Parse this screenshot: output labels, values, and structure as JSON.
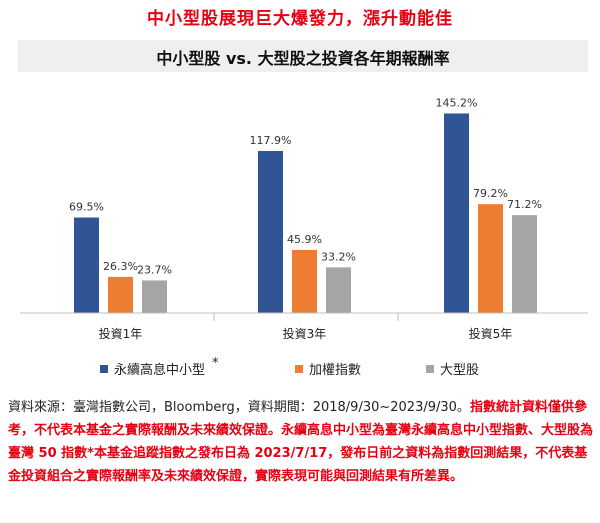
{
  "headline": "中小型股展現巨大爆發力，漲升動能佳",
  "chart_data": {
    "type": "bar",
    "title": "中小型股 vs. 大型股之投資各年期報酬率",
    "categories": [
      "投資1年",
      "投資3年",
      "投資5年"
    ],
    "series": [
      {
        "name": "永續高息中小型",
        "values": [
          69.5,
          117.9,
          145.2
        ],
        "labels": [
          "69.5%",
          "117.9%",
          "145.2%"
        ],
        "color": "#2f5597"
      },
      {
        "name": "加權指數",
        "values": [
          26.3,
          45.9,
          79.2
        ],
        "labels": [
          "26.3%",
          "45.9%",
          "79.2%"
        ],
        "color": "#ed7d31"
      },
      {
        "name": "大型股",
        "values": [
          23.7,
          33.2,
          71.2
        ],
        "labels": [
          "23.7%",
          "33.2%",
          "71.2%"
        ],
        "color": "#a5a5a5"
      }
    ],
    "legend_note": "*",
    "ylim": [
      0,
      155
    ],
    "grid": false,
    "legend_position": "bottom"
  },
  "source": {
    "plain": "資料來源：臺灣指數公司，Bloomberg，資料期間：2018/9/30~2023/9/30。",
    "red": "指數統計資料僅供參考，不代表本基金之實際報酬及未來績效保證。永續高息中小型為臺灣永續高息中小型指數、大型股為臺灣 50 指數*本基金追蹤指數之發布日為 2023/7/17，發布日前之資料為指數回測結果，不代表基金投資組合之實際報酬率及未來績效保證，實際表現可能與回測結果有所差異。"
  }
}
